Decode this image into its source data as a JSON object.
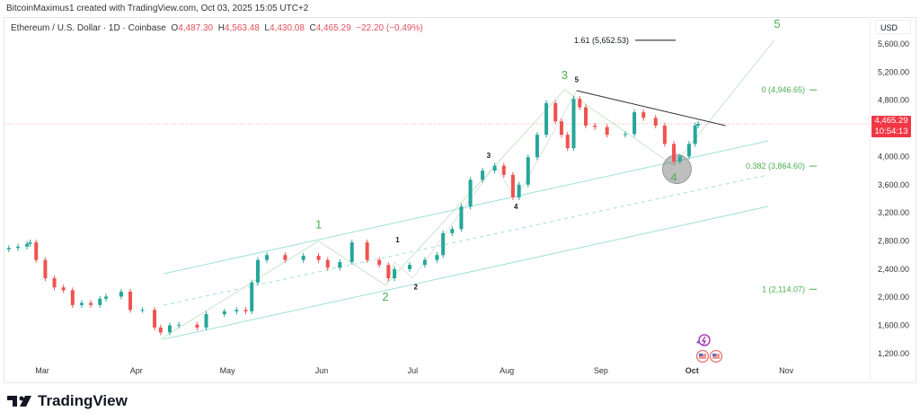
{
  "credit": "BitcoinMaximus1 created with TradingView.com, Oct 03, 2025 15:05 UTC+2",
  "legend": {
    "symbol": "Ethereum / U.S. Dollar · 1D · Coinbase",
    "open_label": "O",
    "open": "4,487.30",
    "high_label": "H",
    "high": "4,563.48",
    "low_label": "L",
    "low": "4,430.08",
    "close_label": "C",
    "close": "4,465.29",
    "change": "−22.20 (−0.49%)"
  },
  "axis": {
    "currency": "USD"
  },
  "price_tag": {
    "price": "4,465.29",
    "countdown": "10:54:13"
  },
  "footer": {
    "logo_text": "TradingView"
  },
  "colors": {
    "up": "#26a69a",
    "down": "#ef5350",
    "wave": "#4caf50",
    "channel": "#9fe0d8",
    "price_line": "#f23645"
  },
  "icons": [
    "lightning-event-icon",
    "us-flag-icon",
    "us-flag-icon"
  ],
  "chart_data": {
    "type": "candlestick",
    "ylim": [
      1000,
      5900
    ],
    "y_ticks": [
      5600,
      5200,
      4800,
      4000,
      3600,
      3200,
      2800,
      2400,
      2000,
      1600,
      1200
    ],
    "y_tick_labels": [
      "5,600.00",
      "5,200.00",
      "4,800.00",
      "4,000.00",
      "3,600.00",
      "3,200.00",
      "2,800.00",
      "2,400.00",
      "2,000.00",
      "1,600.00",
      "1,200.00"
    ],
    "x_ticks": [
      {
        "date": "2025-03-01",
        "label": "Mar"
      },
      {
        "date": "2025-04-01",
        "label": "Apr"
      },
      {
        "date": "2025-05-01",
        "label": "May"
      },
      {
        "date": "2025-06-01",
        "label": "Jun"
      },
      {
        "date": "2025-07-01",
        "label": "Jul"
      },
      {
        "date": "2025-08-01",
        "label": "Aug"
      },
      {
        "date": "2025-09-01",
        "label": "Sep"
      },
      {
        "date": "2025-10-01",
        "label": "Oct"
      },
      {
        "date": "2025-11-01",
        "label": "Nov"
      }
    ],
    "last_price": 4465.29,
    "closes": [
      [
        "2025-02-18",
        2700
      ],
      [
        "2025-02-21",
        2720
      ],
      [
        "2025-02-24",
        2760
      ],
      [
        "2025-02-25",
        2780
      ],
      [
        "2025-02-27",
        2530
      ],
      [
        "2025-03-02",
        2270
      ],
      [
        "2025-03-05",
        2140
      ],
      [
        "2025-03-08",
        2100
      ],
      [
        "2025-03-11",
        1890
      ],
      [
        "2025-03-14",
        1920
      ],
      [
        "2025-03-17",
        1890
      ],
      [
        "2025-03-20",
        1980
      ],
      [
        "2025-03-22",
        2010
      ],
      [
        "2025-03-27",
        2080
      ],
      [
        "2025-03-30",
        1820
      ],
      [
        "2025-04-03",
        1820
      ],
      [
        "2025-04-07",
        1570
      ],
      [
        "2025-04-09",
        1500
      ],
      [
        "2025-04-12",
        1600
      ],
      [
        "2025-04-15",
        1610
      ],
      [
        "2025-04-21",
        1570
      ],
      [
        "2025-04-24",
        1760
      ],
      [
        "2025-04-30",
        1800
      ],
      [
        "2025-05-04",
        1820
      ],
      [
        "2025-05-07",
        1800
      ],
      [
        "2025-05-09",
        2210
      ],
      [
        "2025-05-11",
        2530
      ],
      [
        "2025-05-14",
        2600
      ],
      [
        "2025-05-20",
        2530
      ],
      [
        "2025-05-26",
        2590
      ],
      [
        "2025-05-31",
        2530
      ],
      [
        "2025-06-03",
        2420
      ],
      [
        "2025-06-07",
        2500
      ],
      [
        "2025-06-11",
        2780
      ],
      [
        "2025-06-16",
        2530
      ],
      [
        "2025-06-20",
        2460
      ],
      [
        "2025-06-23",
        2270
      ],
      [
        "2025-06-25",
        2400
      ],
      [
        "2025-06-30",
        2460
      ],
      [
        "2025-07-05",
        2530
      ],
      [
        "2025-07-09",
        2600
      ],
      [
        "2025-07-11",
        2910
      ],
      [
        "2025-07-14",
        2970
      ],
      [
        "2025-07-17",
        3290
      ],
      [
        "2025-07-20",
        3670
      ],
      [
        "2025-07-24",
        3800
      ],
      [
        "2025-07-28",
        3870
      ],
      [
        "2025-07-31",
        3740
      ],
      [
        "2025-08-03",
        3420
      ],
      [
        "2025-08-05",
        3600
      ],
      [
        "2025-08-08",
        3990
      ],
      [
        "2025-08-11",
        4310
      ],
      [
        "2025-08-14",
        4760
      ],
      [
        "2025-08-17",
        4500
      ],
      [
        "2025-08-19",
        4310
      ],
      [
        "2025-08-21",
        4120
      ],
      [
        "2025-08-23",
        4820
      ],
      [
        "2025-08-25",
        4700
      ],
      [
        "2025-08-27",
        4440
      ],
      [
        "2025-08-30",
        4420
      ],
      [
        "2025-09-03",
        4310
      ],
      [
        "2025-09-09",
        4320
      ],
      [
        "2025-09-12",
        4630
      ],
      [
        "2025-09-15",
        4550
      ],
      [
        "2025-09-19",
        4440
      ],
      [
        "2025-09-22",
        4180
      ],
      [
        "2025-09-25",
        3930
      ],
      [
        "2025-09-27",
        4000
      ],
      [
        "2025-09-30",
        4180
      ],
      [
        "2025-10-02",
        4440
      ],
      [
        "2025-10-03",
        4465
      ]
    ],
    "drawings": {
      "channel_upper": [
        [
          "2025-04-10",
          2335
        ],
        [
          "2025-10-26",
          4222
        ]
      ],
      "channel_mid": [
        [
          "2025-04-10",
          1888
        ],
        [
          "2025-10-26",
          3738
        ]
      ],
      "channel_lower": [
        [
          "2025-04-10",
          1404
        ],
        [
          "2025-10-26",
          3291
        ]
      ],
      "trendline": [
        [
          "2025-08-24",
          4937
        ],
        [
          "2025-10-12",
          4439
        ]
      ],
      "major_wave": [
        [
          "2025-04-09",
          1404
        ],
        [
          "2025-05-31",
          2800
        ],
        [
          "2025-06-22",
          2170
        ],
        [
          "2025-08-20",
          4950
        ],
        [
          "2025-09-25",
          3870
        ],
        [
          "2025-10-28",
          5650
        ]
      ],
      "minor_wave": [
        [
          "2025-06-22",
          2170
        ],
        [
          "2025-06-25",
          2500
        ],
        [
          "2025-07-01",
          2270
        ],
        [
          "2025-07-28",
          3870
        ],
        [
          "2025-08-04",
          3400
        ],
        [
          "2025-08-24",
          4937
        ]
      ]
    },
    "wave_labels_major": [
      {
        "text": "1",
        "date": "2025-05-31",
        "price": 2980
      },
      {
        "text": "2",
        "date": "2025-06-22",
        "price": 1950
      },
      {
        "text": "3",
        "date": "2025-08-20",
        "price": 5100
      },
      {
        "text": "4",
        "date": "2025-09-25",
        "price": 3650
      },
      {
        "text": "5",
        "date": "2025-10-29",
        "price": 5830
      }
    ],
    "wave_labels_minor": [
      {
        "text": "1",
        "date": "2025-06-26",
        "price": 2780
      },
      {
        "text": "2",
        "date": "2025-07-02",
        "price": 2110
      },
      {
        "text": "3",
        "date": "2025-07-26",
        "price": 3980
      },
      {
        "text": "4",
        "date": "2025-08-04",
        "price": 3250
      },
      {
        "text": "5",
        "date": "2025-08-24",
        "price": 5060
      }
    ],
    "highlight_circle": {
      "date": "2025-09-26",
      "price": 3820
    },
    "fib_levels": [
      {
        "label": "1.61 (5,652.53)",
        "price": 5652.53,
        "color": "#131722"
      },
      {
        "label": "0 (4,946.65)",
        "price": 4946.65,
        "color": "#4caf50"
      },
      {
        "label": "0.382 (3,864.60)",
        "price": 3864.6,
        "color": "#4caf50"
      },
      {
        "label": "1 (2,114.07)",
        "price": 2114.07,
        "color": "#4caf50"
      }
    ]
  }
}
